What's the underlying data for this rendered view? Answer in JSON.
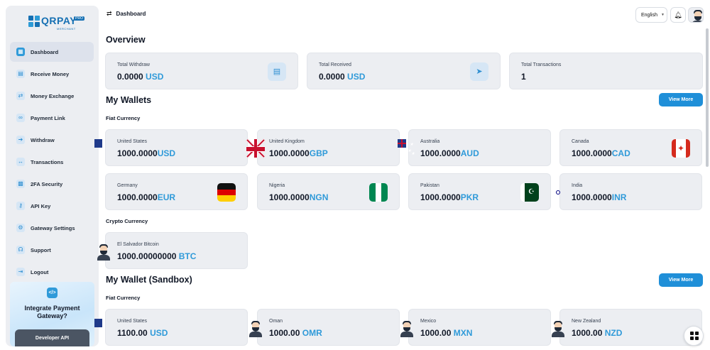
{
  "brand": {
    "name": "QRPAY",
    "subtitle": "MERCHANT",
    "tag": "PRO"
  },
  "header": {
    "title": "Dashboard",
    "language": "English"
  },
  "sidebar": {
    "items": [
      {
        "label": "Dashboard",
        "icon": "dashboard-icon",
        "active": true
      },
      {
        "label": "Receive Money",
        "icon": "receive-icon"
      },
      {
        "label": "Money Exchange",
        "icon": "exchange-icon"
      },
      {
        "label": "Payment Link",
        "icon": "link-icon"
      },
      {
        "label": "Withdraw",
        "icon": "withdraw-icon"
      },
      {
        "label": "Transactions",
        "icon": "transactions-icon"
      },
      {
        "label": "2FA Security",
        "icon": "security-icon"
      },
      {
        "label": "API Key",
        "icon": "key-icon"
      },
      {
        "label": "Gateway Settings",
        "icon": "gear-icon"
      },
      {
        "label": "Support",
        "icon": "support-icon"
      },
      {
        "label": "Logout",
        "icon": "logout-icon"
      }
    ],
    "promo": {
      "title": "Integrate Payment Gateway?",
      "button": "Developer API"
    }
  },
  "overview": {
    "title": "Overview",
    "stats": [
      {
        "label": "Total Withdraw",
        "amount": "0.0000",
        "currency": "USD",
        "icon": "document-icon"
      },
      {
        "label": "Total Received",
        "amount": "0.0000",
        "currency": "USD",
        "icon": "send-icon"
      },
      {
        "label": "Total Transactions",
        "amount": "1",
        "currency": ""
      }
    ]
  },
  "wallets": {
    "title": "My Wallets",
    "view_more": "View More",
    "fiat_title": "Fiat Currency",
    "crypto_title": "Crypto Currency",
    "fiat": [
      {
        "country": "United States",
        "amount": "1000.0000",
        "currency": "USD",
        "flag": "us"
      },
      {
        "country": "United Kingdom",
        "amount": "1000.0000",
        "currency": "GBP",
        "flag": "uk"
      },
      {
        "country": "Australia",
        "amount": "1000.0000",
        "currency": "AUD",
        "flag": "au"
      },
      {
        "country": "Canada",
        "amount": "1000.0000",
        "currency": "CAD",
        "flag": "ca"
      },
      {
        "country": "Germany",
        "amount": "1000.0000",
        "currency": "EUR",
        "flag": "de"
      },
      {
        "country": "Nigeria",
        "amount": "1000.0000",
        "currency": "NGN",
        "flag": "ng"
      },
      {
        "country": "Pakistan",
        "amount": "1000.0000",
        "currency": "PKR",
        "flag": "pk"
      },
      {
        "country": "India",
        "amount": "1000.0000",
        "currency": "INR",
        "flag": "in"
      }
    ],
    "crypto": [
      {
        "country": "El Salvador Bitcoin",
        "amount": "1000.00000000",
        "currency": "BTC",
        "flag": "avatar"
      }
    ]
  },
  "sandbox": {
    "title": "My Wallet (Sandbox)",
    "view_more": "View More",
    "fiat_title": "Fiat Currency",
    "fiat": [
      {
        "country": "United States",
        "amount": "1100.00",
        "currency": "USD",
        "flag": "us"
      },
      {
        "country": "Oman",
        "amount": "1000.00",
        "currency": "OMR",
        "flag": "avatar"
      },
      {
        "country": "Mexico",
        "amount": "1000.00",
        "currency": "MXN",
        "flag": "avatar"
      },
      {
        "country": "New Zealand",
        "amount": "1000.00",
        "currency": "NZD",
        "flag": "avatar"
      }
    ]
  }
}
